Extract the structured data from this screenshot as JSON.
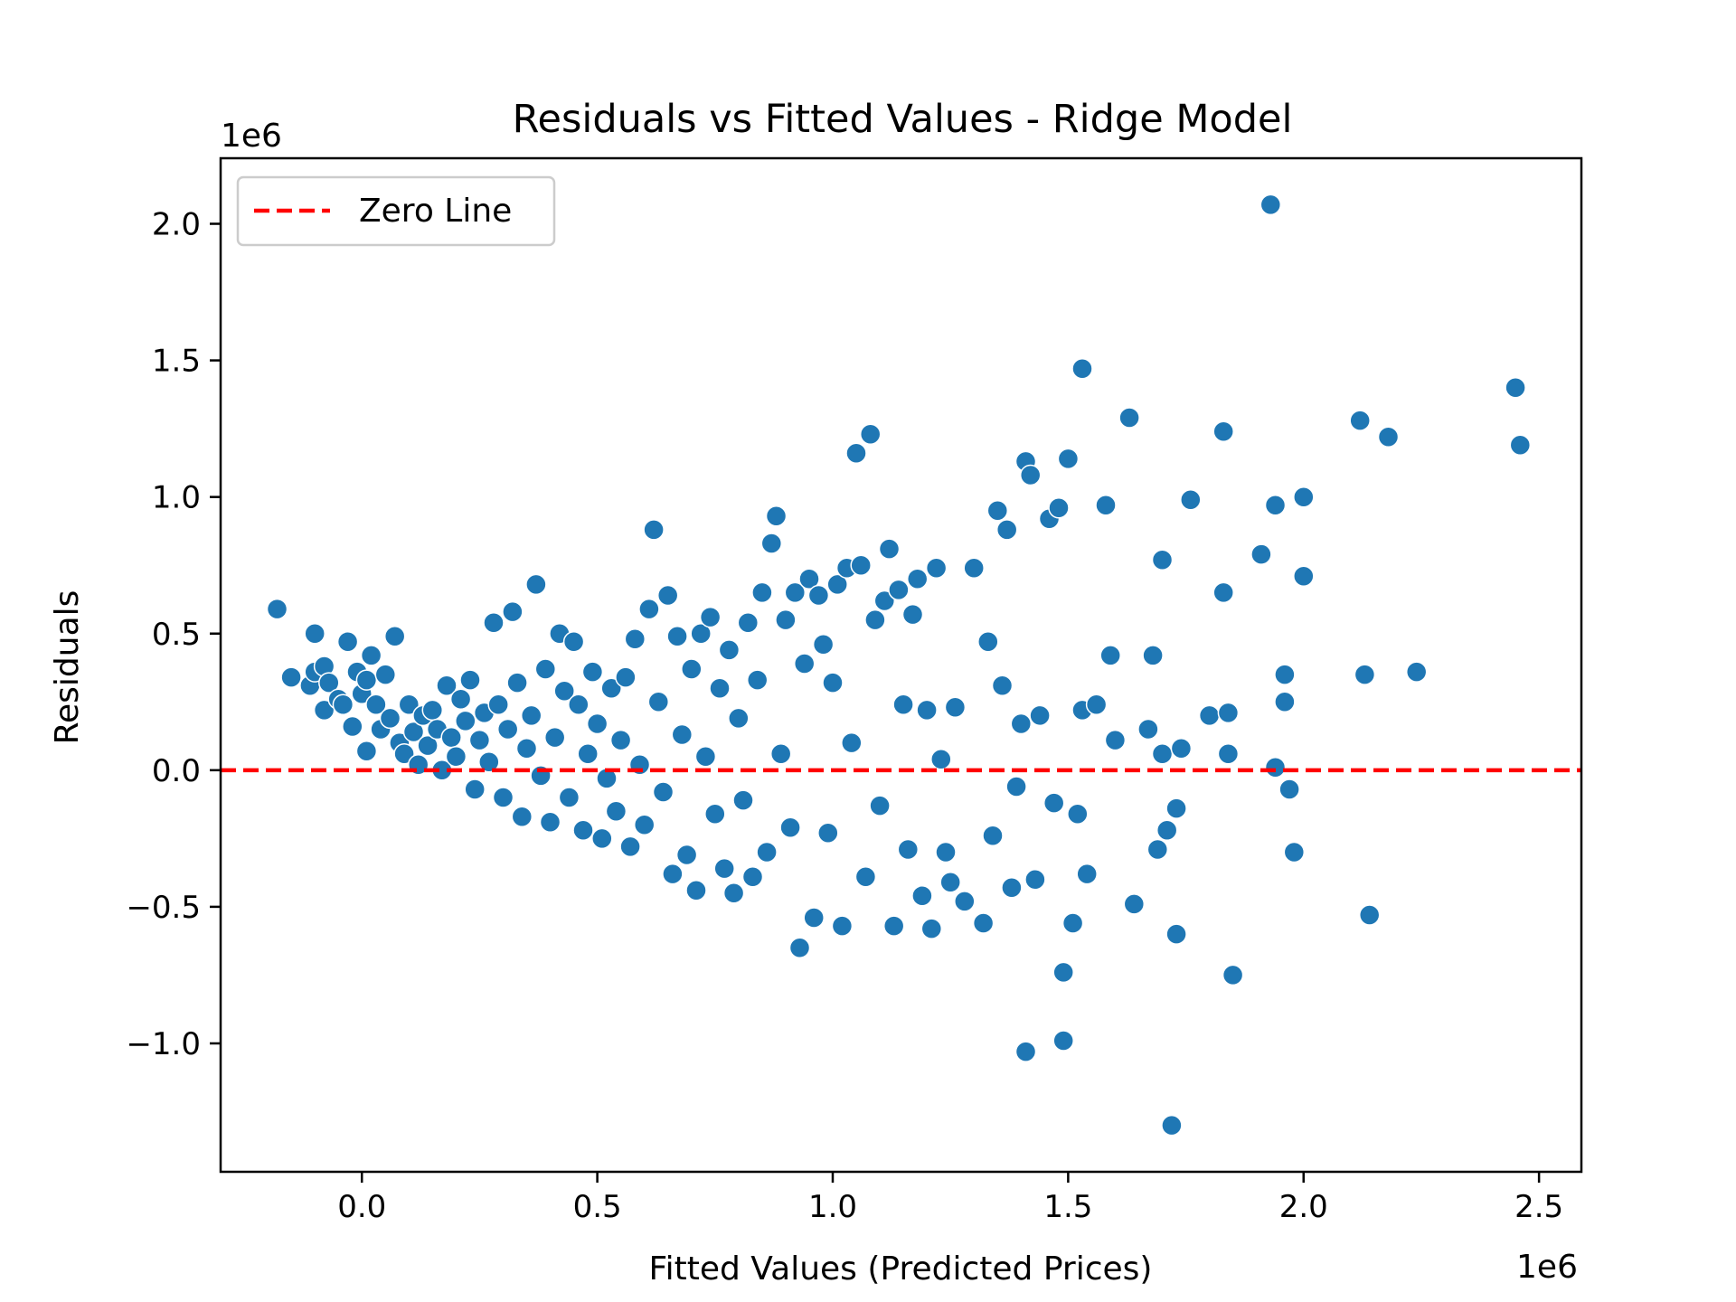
{
  "chart_data": {
    "type": "scatter",
    "title": "Residuals vs Fitted Values - Ridge Model",
    "xlabel": "Fitted Values (Predicted Prices)",
    "ylabel": "Residuals",
    "x_offset_label": "1e6",
    "y_offset_label": "1e6",
    "xlim": [
      -0.3,
      2.59
    ],
    "ylim": [
      -1.47,
      2.24
    ],
    "x_ticks": [
      0.0,
      0.5,
      1.0,
      1.5,
      2.0,
      2.5
    ],
    "x_tick_labels": [
      "0.0",
      "0.5",
      "1.0",
      "1.5",
      "2.0",
      "2.5"
    ],
    "y_ticks": [
      -1.0,
      -0.5,
      0.0,
      0.5,
      1.0,
      1.5,
      2.0
    ],
    "y_tick_labels": [
      "−1.0",
      "−0.5",
      "0.0",
      "0.5",
      "1.0",
      "1.5",
      "2.0"
    ],
    "grid": false,
    "legend": {
      "position": "top-left",
      "entries": [
        {
          "label": "Zero Line",
          "style": "dashed",
          "color": "#ff0000"
        }
      ]
    },
    "reference_line": {
      "y": 0.0,
      "label": "Zero Line",
      "color": "#ff0000",
      "style": "dashed"
    },
    "marker_color": "#1f77b4",
    "series": [
      {
        "name": "Residuals",
        "points": [
          [
            -0.18,
            0.59
          ],
          [
            -0.15,
            0.34
          ],
          [
            -0.11,
            0.31
          ],
          [
            -0.1,
            0.36
          ],
          [
            -0.1,
            0.5
          ],
          [
            -0.08,
            0.22
          ],
          [
            -0.08,
            0.38
          ],
          [
            -0.07,
            0.32
          ],
          [
            -0.05,
            0.26
          ],
          [
            -0.04,
            0.24
          ],
          [
            -0.03,
            0.47
          ],
          [
            -0.02,
            0.16
          ],
          [
            -0.01,
            0.36
          ],
          [
            0.0,
            0.28
          ],
          [
            0.01,
            0.33
          ],
          [
            0.01,
            0.07
          ],
          [
            0.02,
            0.42
          ],
          [
            0.03,
            0.24
          ],
          [
            0.04,
            0.15
          ],
          [
            0.05,
            0.35
          ],
          [
            0.06,
            0.19
          ],
          [
            0.07,
            0.49
          ],
          [
            0.08,
            0.1
          ],
          [
            0.09,
            0.06
          ],
          [
            0.1,
            0.24
          ],
          [
            0.11,
            0.14
          ],
          [
            0.12,
            0.02
          ],
          [
            0.13,
            0.2
          ],
          [
            0.14,
            0.09
          ],
          [
            0.15,
            0.22
          ],
          [
            0.16,
            0.15
          ],
          [
            0.17,
            0.0
          ],
          [
            0.18,
            0.31
          ],
          [
            0.19,
            0.12
          ],
          [
            0.2,
            0.05
          ],
          [
            0.21,
            0.26
          ],
          [
            0.22,
            0.18
          ],
          [
            0.23,
            0.33
          ],
          [
            0.24,
            -0.07
          ],
          [
            0.25,
            0.11
          ],
          [
            0.26,
            0.21
          ],
          [
            0.27,
            0.03
          ],
          [
            0.28,
            0.54
          ],
          [
            0.29,
            0.24
          ],
          [
            0.3,
            -0.1
          ],
          [
            0.31,
            0.15
          ],
          [
            0.32,
            0.58
          ],
          [
            0.33,
            0.32
          ],
          [
            0.34,
            -0.17
          ],
          [
            0.35,
            0.08
          ],
          [
            0.36,
            0.2
          ],
          [
            0.37,
            0.68
          ],
          [
            0.38,
            -0.02
          ],
          [
            0.39,
            0.37
          ],
          [
            0.4,
            -0.19
          ],
          [
            0.41,
            0.12
          ],
          [
            0.42,
            0.5
          ],
          [
            0.43,
            0.29
          ],
          [
            0.44,
            -0.1
          ],
          [
            0.45,
            0.47
          ],
          [
            0.46,
            0.24
          ],
          [
            0.47,
            -0.22
          ],
          [
            0.48,
            0.06
          ],
          [
            0.49,
            0.36
          ],
          [
            0.5,
            0.17
          ],
          [
            0.51,
            -0.25
          ],
          [
            0.52,
            -0.03
          ],
          [
            0.53,
            0.3
          ],
          [
            0.54,
            -0.15
          ],
          [
            0.55,
            0.11
          ],
          [
            0.56,
            0.34
          ],
          [
            0.57,
            -0.28
          ],
          [
            0.58,
            0.48
          ],
          [
            0.59,
            0.02
          ],
          [
            0.6,
            -0.2
          ],
          [
            0.61,
            0.59
          ],
          [
            0.62,
            0.88
          ],
          [
            0.63,
            0.25
          ],
          [
            0.64,
            -0.08
          ],
          [
            0.65,
            0.64
          ],
          [
            0.66,
            -0.38
          ],
          [
            0.67,
            0.49
          ],
          [
            0.68,
            0.13
          ],
          [
            0.69,
            -0.31
          ],
          [
            0.7,
            0.37
          ],
          [
            0.71,
            -0.44
          ],
          [
            0.72,
            0.5
          ],
          [
            0.73,
            0.05
          ],
          [
            0.74,
            0.56
          ],
          [
            0.75,
            -0.16
          ],
          [
            0.76,
            0.3
          ],
          [
            0.77,
            -0.36
          ],
          [
            0.78,
            0.44
          ],
          [
            0.79,
            -0.45
          ],
          [
            0.8,
            0.19
          ],
          [
            0.81,
            -0.11
          ],
          [
            0.82,
            0.54
          ],
          [
            0.83,
            -0.39
          ],
          [
            0.84,
            0.33
          ],
          [
            0.85,
            0.65
          ],
          [
            0.86,
            -0.3
          ],
          [
            0.87,
            0.83
          ],
          [
            0.88,
            0.93
          ],
          [
            0.89,
            0.06
          ],
          [
            0.9,
            0.55
          ],
          [
            0.91,
            -0.21
          ],
          [
            0.92,
            0.65
          ],
          [
            0.93,
            -0.65
          ],
          [
            0.94,
            0.39
          ],
          [
            0.95,
            0.7
          ],
          [
            0.96,
            -0.54
          ],
          [
            0.97,
            0.64
          ],
          [
            0.98,
            0.46
          ],
          [
            0.99,
            -0.23
          ],
          [
            1.0,
            0.32
          ],
          [
            1.01,
            0.68
          ],
          [
            1.02,
            -0.57
          ],
          [
            1.03,
            0.74
          ],
          [
            1.04,
            0.1
          ],
          [
            1.05,
            1.16
          ],
          [
            1.06,
            0.75
          ],
          [
            1.07,
            -0.39
          ],
          [
            1.08,
            1.23
          ],
          [
            1.09,
            0.55
          ],
          [
            1.1,
            -0.13
          ],
          [
            1.11,
            0.62
          ],
          [
            1.12,
            0.81
          ],
          [
            1.13,
            -0.57
          ],
          [
            1.14,
            0.66
          ],
          [
            1.15,
            0.24
          ],
          [
            1.16,
            -0.29
          ],
          [
            1.17,
            0.57
          ],
          [
            1.18,
            0.7
          ],
          [
            1.19,
            -0.46
          ],
          [
            1.2,
            0.22
          ],
          [
            1.21,
            -0.58
          ],
          [
            1.22,
            0.74
          ],
          [
            1.23,
            0.04
          ],
          [
            1.24,
            -0.3
          ],
          [
            1.25,
            -0.41
          ],
          [
            1.26,
            0.23
          ],
          [
            1.28,
            -0.48
          ],
          [
            1.3,
            0.74
          ],
          [
            1.32,
            -0.56
          ],
          [
            1.33,
            0.47
          ],
          [
            1.34,
            -0.24
          ],
          [
            1.35,
            0.95
          ],
          [
            1.36,
            0.31
          ],
          [
            1.37,
            0.88
          ],
          [
            1.38,
            -0.43
          ],
          [
            1.39,
            -0.06
          ],
          [
            1.4,
            0.17
          ],
          [
            1.41,
            1.13
          ],
          [
            1.41,
            -1.03
          ],
          [
            1.42,
            1.08
          ],
          [
            1.43,
            -0.4
          ],
          [
            1.44,
            0.2
          ],
          [
            1.46,
            0.92
          ],
          [
            1.47,
            -0.12
          ],
          [
            1.48,
            0.96
          ],
          [
            1.49,
            -0.74
          ],
          [
            1.49,
            -0.99
          ],
          [
            1.5,
            1.14
          ],
          [
            1.51,
            -0.56
          ],
          [
            1.52,
            -0.16
          ],
          [
            1.53,
            1.47
          ],
          [
            1.53,
            0.22
          ],
          [
            1.54,
            -0.38
          ],
          [
            1.56,
            0.24
          ],
          [
            1.58,
            0.97
          ],
          [
            1.59,
            0.42
          ],
          [
            1.6,
            0.11
          ],
          [
            1.63,
            1.29
          ],
          [
            1.64,
            -0.49
          ],
          [
            1.67,
            0.15
          ],
          [
            1.68,
            0.42
          ],
          [
            1.69,
            -0.29
          ],
          [
            1.7,
            0.77
          ],
          [
            1.7,
            0.06
          ],
          [
            1.71,
            -0.22
          ],
          [
            1.72,
            -1.3
          ],
          [
            1.73,
            -0.6
          ],
          [
            1.73,
            -0.14
          ],
          [
            1.74,
            0.08
          ],
          [
            1.76,
            0.99
          ],
          [
            1.8,
            0.2
          ],
          [
            1.83,
            1.24
          ],
          [
            1.83,
            0.65
          ],
          [
            1.84,
            0.21
          ],
          [
            1.84,
            0.06
          ],
          [
            1.85,
            -0.75
          ],
          [
            1.91,
            0.79
          ],
          [
            1.93,
            2.07
          ],
          [
            1.94,
            0.97
          ],
          [
            1.94,
            0.01
          ],
          [
            1.96,
            0.35
          ],
          [
            1.96,
            0.25
          ],
          [
            1.97,
            -0.07
          ],
          [
            1.98,
            -0.3
          ],
          [
            2.0,
            0.71
          ],
          [
            2.0,
            1.0
          ],
          [
            2.12,
            1.28
          ],
          [
            2.13,
            0.35
          ],
          [
            2.14,
            -0.53
          ],
          [
            2.18,
            1.22
          ],
          [
            2.24,
            0.36
          ],
          [
            2.45,
            1.4
          ],
          [
            2.46,
            1.19
          ]
        ]
      }
    ]
  }
}
